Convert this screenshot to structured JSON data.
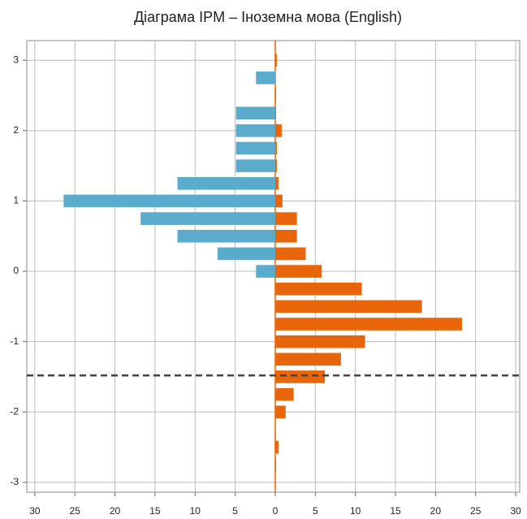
{
  "chart_data": {
    "type": "mirrored_barh",
    "title": "Діаграма IPM – Іноземна мова (English)",
    "y": [
      3,
      2.75,
      2.5,
      2.25,
      2,
      1.75,
      1.5,
      1.25,
      1,
      0.75,
      0.5,
      0.25,
      0,
      -0.25,
      -0.5,
      -0.75,
      -1,
      -1.25,
      -1.5,
      -1.75,
      -2,
      -2.25,
      -2.5,
      -2.75
    ],
    "series": [
      {
        "color": "#5aabcc",
        "values": [
          null,
          -2.4,
          null,
          -4.9,
          -4.9,
          -4.9,
          -4.9,
          -12.2,
          -26.4,
          -16.8,
          -12.2,
          -7.2,
          -2.4,
          null,
          null,
          null,
          null,
          null,
          null,
          null,
          null,
          null,
          null,
          null
        ]
      },
      {
        "color": "#e8650a",
        "values": [
          0.2,
          null,
          0.1,
          0.1,
          0.8,
          0.2,
          0.2,
          0.4,
          0.9,
          2.7,
          2.7,
          3.8,
          5.8,
          10.8,
          18.3,
          23.3,
          11.2,
          8.2,
          6.2,
          2.3,
          1.3,
          null,
          0.4,
          0.1
        ]
      }
    ],
    "bar_height": 0.18,
    "reference_line": -1.48,
    "xlim": [
      -31,
      30.5
    ],
    "xticks": [
      {
        "value": -30,
        "label": "30"
      },
      {
        "value": -25,
        "label": "25"
      },
      {
        "value": -20,
        "label": "20"
      },
      {
        "value": -15,
        "label": "15"
      },
      {
        "value": -10,
        "label": "10"
      },
      {
        "value": -5,
        "label": "5"
      },
      0,
      5,
      10,
      15,
      20,
      25,
      30
    ],
    "ylim": [
      -3.14,
      3.28
    ],
    "yticks": [
      -3,
      -2,
      -1,
      0,
      1,
      2,
      3
    ],
    "grid": true
  }
}
